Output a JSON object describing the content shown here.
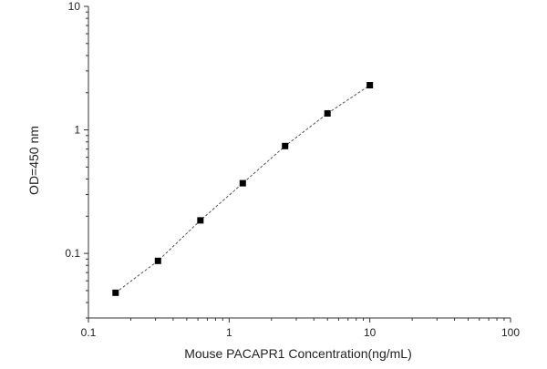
{
  "chart_data": {
    "type": "scatter",
    "xlabel": "Mouse PACAPR1 Concentration(ng/mL)",
    "ylabel": "OD=450 nm",
    "x_scale": "log",
    "y_scale": "log",
    "xlim": [
      0.1,
      100
    ],
    "ylim": [
      0.03,
      10
    ],
    "x_ticks": [
      {
        "value": 0.1,
        "label": "0.1"
      },
      {
        "value": 1,
        "label": "1"
      },
      {
        "value": 10,
        "label": "10"
      },
      {
        "value": 100,
        "label": "100"
      }
    ],
    "y_ticks": [
      {
        "value": 0.1,
        "label": "0.1"
      },
      {
        "value": 1,
        "label": "1"
      },
      {
        "value": 10,
        "label": "10"
      }
    ],
    "grid": false,
    "fit_line": "dashed",
    "series": [
      {
        "x": [
          0.156,
          0.312,
          0.625,
          1.25,
          2.5,
          5,
          10
        ],
        "y": [
          0.048,
          0.087,
          0.185,
          0.37,
          0.74,
          1.36,
          2.3
        ]
      }
    ]
  }
}
